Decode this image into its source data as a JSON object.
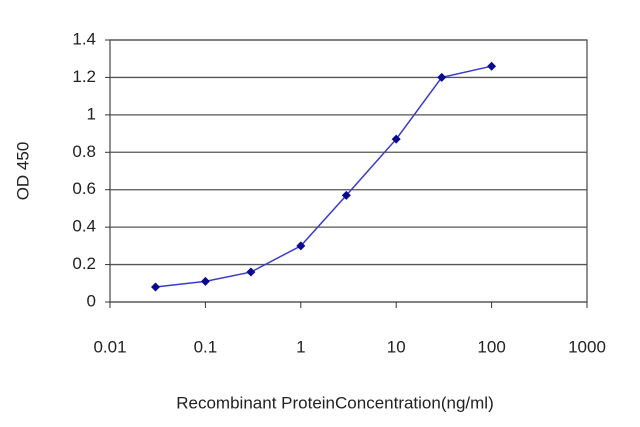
{
  "chart_data": {
    "type": "line",
    "x_label": "Recombinant ProteinConcentration(ng/ml)",
    "y_label": "OD 450",
    "x": [
      0.03,
      0.1,
      0.3,
      1,
      3,
      10,
      30,
      100
    ],
    "series": [
      {
        "color": "#3a3acc",
        "values": [
          0.08,
          0.11,
          0.16,
          0.3,
          0.57,
          0.87,
          1.2,
          1.26
        ]
      }
    ],
    "marker_color": "#0a0a8c",
    "xscale": "log",
    "xlim": [
      0.01,
      1000
    ],
    "xticks": [
      0.01,
      0.1,
      1,
      10,
      100,
      1000
    ],
    "ylim": [
      0,
      1.4
    ],
    "yticks": [
      0,
      0.2,
      0.4,
      0.6,
      0.8,
      1,
      1.2,
      1.4
    ],
    "grid": true
  }
}
